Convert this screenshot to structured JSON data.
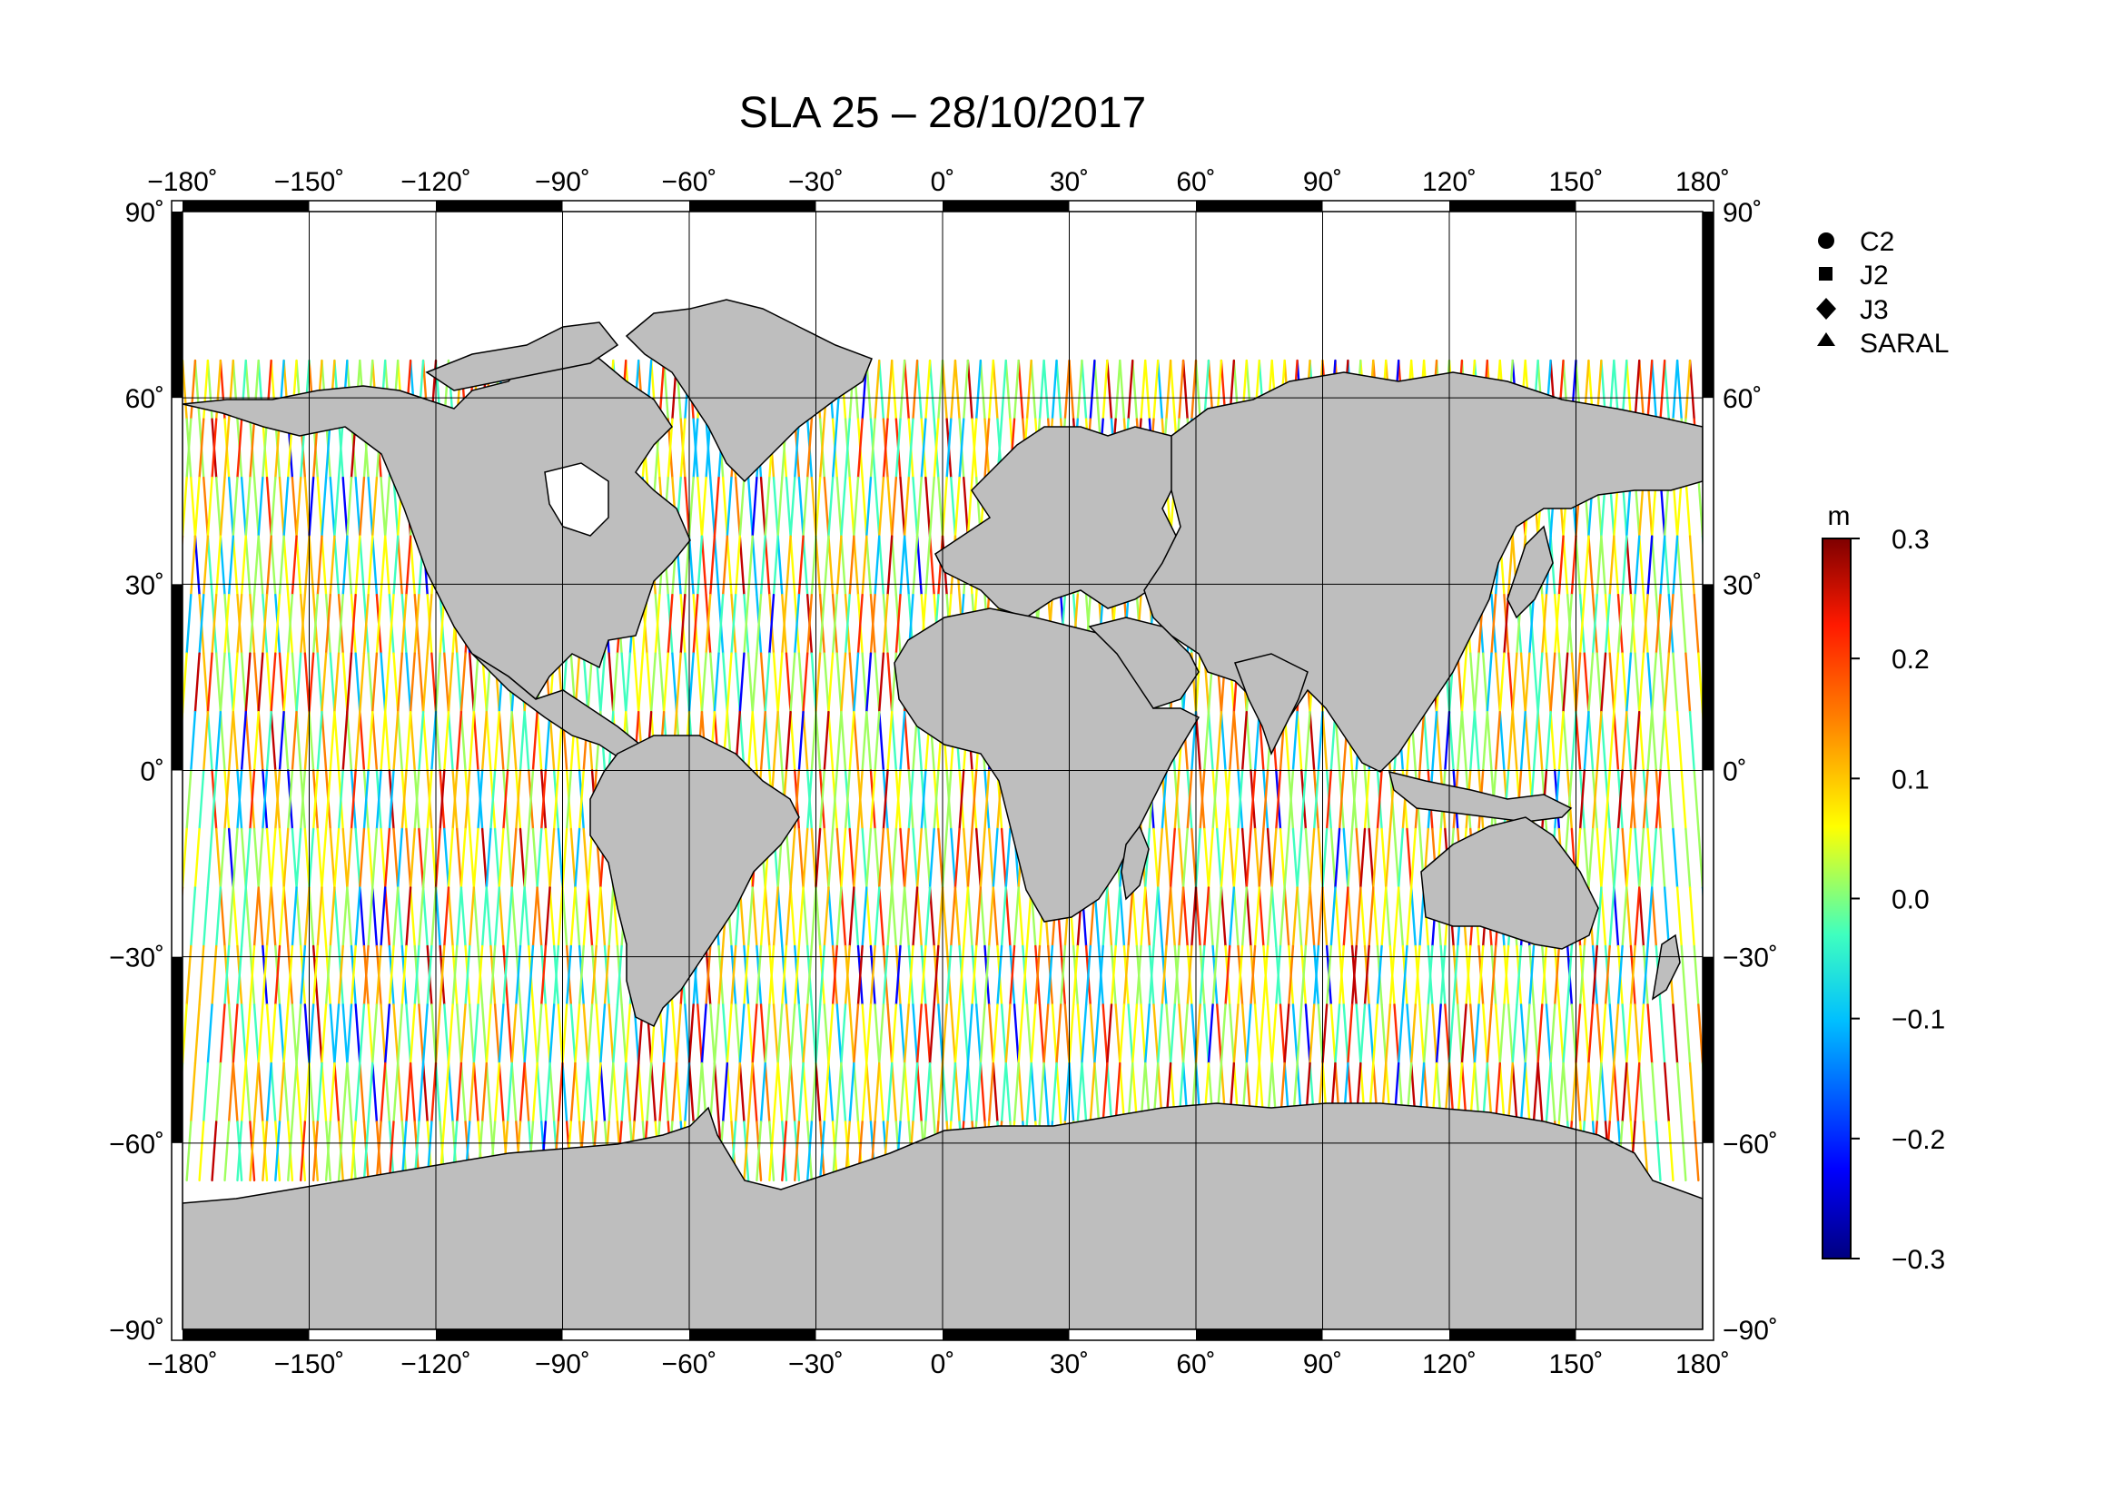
{
  "title": "SLA 25 – 28/10/2017",
  "map": {
    "projection": "equirectangular",
    "lon_ticks": [
      "−180˚",
      "−150˚",
      "−120˚",
      "−90˚",
      "−60˚",
      "−30˚",
      "0˚",
      "30˚",
      "60˚",
      "90˚",
      "120˚",
      "150˚",
      "180˚"
    ],
    "lat_ticks": [
      "90˚",
      "60˚",
      "30˚",
      "0˚",
      "−30˚",
      "−60˚",
      "−90˚"
    ],
    "land_color": "#bebebe",
    "ocean_color": "#ffffff",
    "grid": true
  },
  "legend": {
    "items": [
      {
        "label": "C2",
        "symbol": "circle"
      },
      {
        "label": "J2",
        "symbol": "square"
      },
      {
        "label": "J3",
        "symbol": "diamond"
      },
      {
        "label": "SARAL",
        "symbol": "triangle"
      }
    ]
  },
  "colorbar": {
    "unit": "m",
    "ticks": [
      "0.3",
      "0.2",
      "0.1",
      "0.0",
      "−0.1",
      "−0.2",
      "−0.3"
    ],
    "range": [
      -0.3,
      0.3
    ],
    "colormap": "jet",
    "stops": [
      "#00007f",
      "#0000ff",
      "#00bfff",
      "#3fffbf",
      "#bfff3f",
      "#ffbf00",
      "#ff3f00",
      "#7f0000"
    ]
  }
}
